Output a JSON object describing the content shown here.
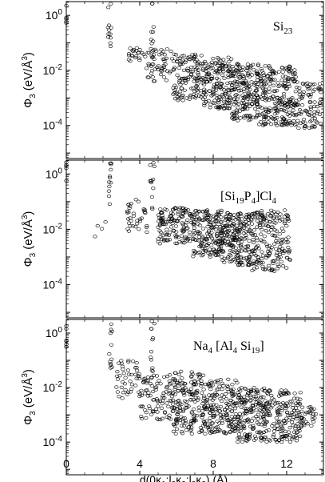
{
  "chart_data": [
    {
      "type": "scatter",
      "label": {
        "main": "Si",
        "sub": "23"
      },
      "xlabel": "d(0κ1;l2κ2;l3κ3) (Å)",
      "ylabel": "Φ3 (eV/Å3)",
      "xlim": [
        0,
        14
      ],
      "ylim_log10": [
        -5.2,
        0.5
      ],
      "log_y": true,
      "xticks": [
        0,
        4,
        8,
        12
      ],
      "yticks": [
        "10^0",
        "10^-2",
        "10^-4"
      ],
      "marker": "open-circle",
      "clusters": [
        {
          "x": [
            0,
            0
          ],
          "y": [
            0.3,
            6
          ],
          "n": 8
        },
        {
          "x": [
            2.25,
            2.45
          ],
          "y": [
            0.03,
            6
          ],
          "n": 14
        },
        {
          "x": [
            4.55,
            4.8
          ],
          "y": [
            0.03,
            6
          ],
          "n": 14
        },
        {
          "x": [
            3.4,
            4.3
          ],
          "y": [
            0.015,
            0.07
          ],
          "n": 22
        },
        {
          "x": [
            4.3,
            5.8
          ],
          "y": [
            0.004,
            0.06
          ],
          "n": 50
        },
        {
          "x": [
            5.8,
            7.5
          ],
          "y": [
            0.0008,
            0.04
          ],
          "n": 130
        },
        {
          "x": [
            7.5,
            9.0
          ],
          "y": [
            0.0004,
            0.03
          ],
          "n": 160
        },
        {
          "x": [
            9.0,
            10.5
          ],
          "y": [
            0.00015,
            0.02
          ],
          "n": 190
        },
        {
          "x": [
            10.5,
            12.5
          ],
          "y": [
            0.0001,
            0.015
          ],
          "n": 230
        },
        {
          "x": [
            12.5,
            13.9
          ],
          "y": [
            8e-05,
            0.004
          ],
          "n": 90
        }
      ]
    },
    {
      "type": "scatter",
      "label": {
        "pre": "[Si",
        "sub1": "19",
        "mid": "P",
        "sub2": "4",
        "post": "]Cl",
        "sub3": "4"
      },
      "xlim": [
        0,
        14
      ],
      "ylim_log10": [
        -5.2,
        0.5
      ],
      "log_y": true,
      "xticks": [
        0,
        4,
        8,
        12
      ],
      "yticks": [
        "10^0",
        "10^-2",
        "10^-4"
      ],
      "marker": "open-circle",
      "clusters": [
        {
          "x": [
            0,
            0
          ],
          "y": [
            0.5,
            6
          ],
          "n": 8
        },
        {
          "x": [
            2.3,
            2.45
          ],
          "y": [
            0.05,
            6
          ],
          "n": 14
        },
        {
          "x": [
            4.55,
            4.8
          ],
          "y": [
            0.05,
            6
          ],
          "n": 14
        },
        {
          "x": [
            3.3,
            4.4
          ],
          "y": [
            0.006,
            0.12
          ],
          "n": 35
        },
        {
          "x": [
            5.0,
            6.8
          ],
          "y": [
            0.003,
            0.06
          ],
          "n": 130
        },
        {
          "x": [
            6.8,
            8.5
          ],
          "y": [
            0.001,
            0.05
          ],
          "n": 180
        },
        {
          "x": [
            8.5,
            10.0
          ],
          "y": [
            0.0005,
            0.04
          ],
          "n": 190
        },
        {
          "x": [
            10.0,
            12.2
          ],
          "y": [
            0.0003,
            0.05
          ],
          "n": 200
        },
        {
          "x": [
            1.5,
            2.2
          ],
          "y": [
            0.002,
            0.02
          ],
          "n": 4
        }
      ]
    },
    {
      "type": "scatter",
      "label": {
        "pre": "Na",
        "sub1": "4",
        "mid": "[Al",
        "sub2": "4",
        "post": "Si",
        "sub3": "19",
        "end": "]"
      },
      "xlim": [
        0,
        14
      ],
      "ylim_log10": [
        -5.2,
        0.5
      ],
      "log_y": true,
      "xticks": [
        0,
        4,
        8,
        12
      ],
      "yticks": [
        "10^0",
        "10^-2",
        "10^-4"
      ],
      "marker": "open-circle",
      "clusters": [
        {
          "x": [
            0,
            0
          ],
          "y": [
            0.2,
            6
          ],
          "n": 10
        },
        {
          "x": [
            2.3,
            2.5
          ],
          "y": [
            0.03,
            6
          ],
          "n": 14
        },
        {
          "x": [
            4.6,
            4.8
          ],
          "y": [
            0.03,
            6
          ],
          "n": 14
        },
        {
          "x": [
            2.7,
            4.0
          ],
          "y": [
            0.004,
            0.1
          ],
          "n": 45
        },
        {
          "x": [
            4.0,
            5.8
          ],
          "y": [
            0.0006,
            0.03
          ],
          "n": 90
        },
        {
          "x": [
            5.8,
            7.5
          ],
          "y": [
            0.0002,
            0.04
          ],
          "n": 170
        },
        {
          "x": [
            7.5,
            9.3
          ],
          "y": [
            0.0002,
            0.02
          ],
          "n": 180
        },
        {
          "x": [
            9.3,
            11.0
          ],
          "y": [
            0.0001,
            0.01
          ],
          "n": 190
        },
        {
          "x": [
            11.0,
            12.8
          ],
          "y": [
            0.0001,
            0.008
          ],
          "n": 150
        },
        {
          "x": [
            12.8,
            13.6
          ],
          "y": [
            0.0003,
            0.002
          ],
          "n": 30
        }
      ]
    }
  ]
}
